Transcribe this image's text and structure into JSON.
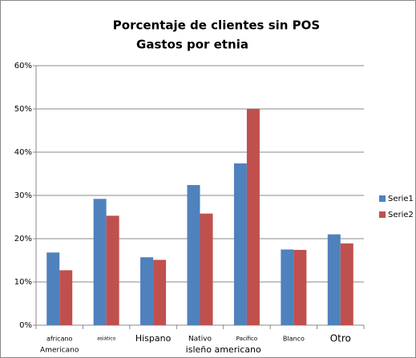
{
  "chart_data": {
    "type": "bar",
    "title": "Porcentaje de clientes sin POS",
    "subtitle": "Gastos por etnia",
    "categories": [
      "africano",
      "asiático",
      "Hispano",
      "Nativo",
      "Pacífico",
      "Blanco",
      "Otro"
    ],
    "annotations": [
      "Americano",
      "isleño americano"
    ],
    "series": [
      {
        "name": "Serie1",
        "color": "#4f81bd",
        "values": [
          16.8,
          29.2,
          15.7,
          32.4,
          37.4,
          17.5,
          21.0
        ]
      },
      {
        "name": "Serie2",
        "color": "#c0504d",
        "values": [
          12.7,
          25.3,
          15.1,
          25.8,
          50.0,
          17.4,
          18.9
        ]
      }
    ],
    "ylim": [
      0,
      60
    ],
    "yticks": [
      {
        "value": 0,
        "label": "0%"
      },
      {
        "value": 10,
        "label": "10%"
      },
      {
        "value": 20,
        "label": "20%"
      },
      {
        "value": 30,
        "label": "30%"
      },
      {
        "value": 40,
        "label": "40%"
      },
      {
        "value": 50,
        "label": "50%"
      },
      {
        "value": 60,
        "label": "60%"
      }
    ],
    "grid": true,
    "legend": "right"
  }
}
